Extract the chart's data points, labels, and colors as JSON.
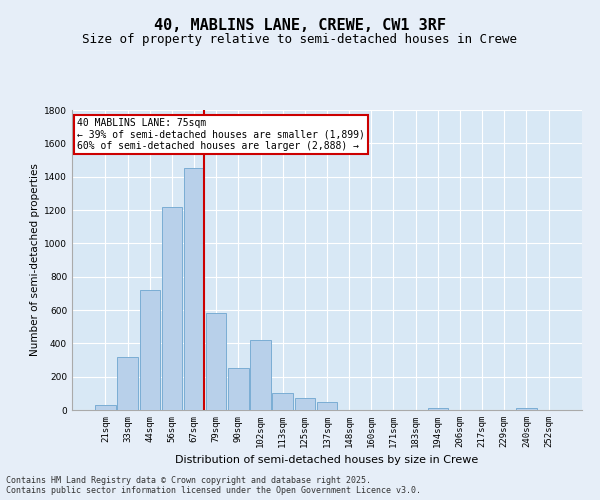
{
  "title": "40, MABLINS LANE, CREWE, CW1 3RF",
  "subtitle": "Size of property relative to semi-detached houses in Crewe",
  "xlabel": "Distribution of semi-detached houses by size in Crewe",
  "ylabel": "Number of semi-detached properties",
  "bin_labels": [
    "21sqm",
    "33sqm",
    "44sqm",
    "56sqm",
    "67sqm",
    "79sqm",
    "90sqm",
    "102sqm",
    "113sqm",
    "125sqm",
    "137sqm",
    "148sqm",
    "160sqm",
    "171sqm",
    "183sqm",
    "194sqm",
    "206sqm",
    "217sqm",
    "229sqm",
    "240sqm",
    "252sqm"
  ],
  "bar_heights": [
    30,
    320,
    720,
    1220,
    1450,
    580,
    250,
    420,
    100,
    70,
    50,
    0,
    0,
    0,
    0,
    15,
    0,
    0,
    0,
    15,
    0
  ],
  "bar_color": "#b8d0ea",
  "bar_edgecolor": "#7aadd4",
  "red_line_x": 4.45,
  "red_line_color": "#cc0000",
  "annotation_title": "40 MABLINS LANE: 75sqm",
  "annotation_line1": "← 39% of semi-detached houses are smaller (1,899)",
  "annotation_line2": "60% of semi-detached houses are larger (2,888) →",
  "annotation_box_facecolor": "#ffffff",
  "annotation_box_edgecolor": "#cc0000",
  "ylim": [
    0,
    1800
  ],
  "yticks": [
    0,
    200,
    400,
    600,
    800,
    1000,
    1200,
    1400,
    1600,
    1800
  ],
  "background_color": "#e6eef8",
  "plot_background_color": "#d8e8f5",
  "footer_line1": "Contains HM Land Registry data © Crown copyright and database right 2025.",
  "footer_line2": "Contains public sector information licensed under the Open Government Licence v3.0.",
  "title_fontsize": 11,
  "subtitle_fontsize": 9,
  "tick_fontsize": 6.5,
  "ylabel_fontsize": 7.5,
  "xlabel_fontsize": 8,
  "annotation_fontsize": 7,
  "footer_fontsize": 6
}
